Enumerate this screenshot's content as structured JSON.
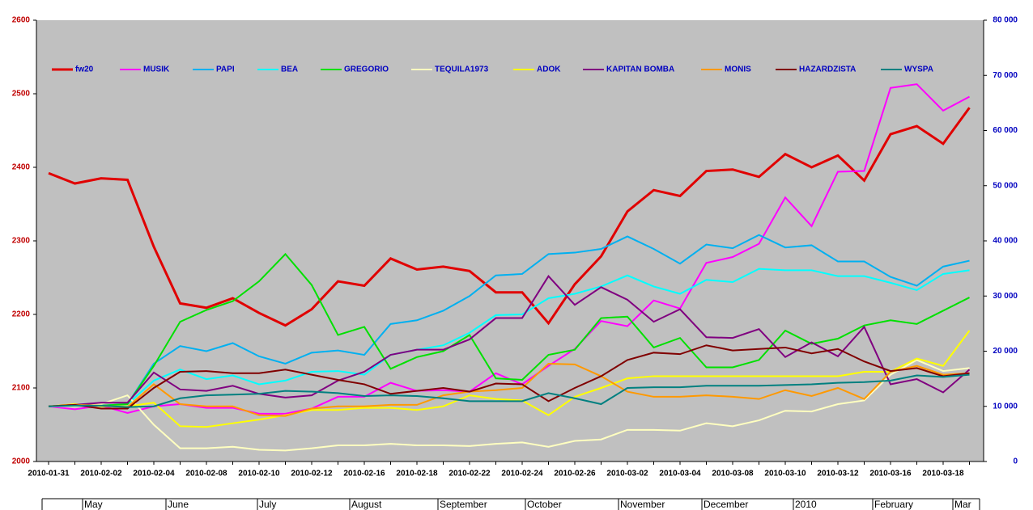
{
  "chart_data": {
    "type": "line",
    "categories": [
      "2010-01-31",
      null,
      "2010-02-02",
      null,
      "2010-02-04",
      null,
      "2010-02-08",
      null,
      "2010-02-10",
      null,
      "2010-02-12",
      null,
      "2010-02-16",
      null,
      "2010-02-18",
      null,
      "2010-02-22",
      null,
      "2010-02-24",
      null,
      "2010-02-26",
      null,
      "2010-03-02",
      null,
      "2010-03-04",
      null,
      "2010-03-08",
      null,
      "2010-03-10",
      null,
      "2010-03-12",
      null,
      "2010-03-16",
      null,
      "2010-03-18",
      null
    ],
    "x2categories": [
      "May",
      "June",
      "July",
      "August",
      "September",
      "October",
      "November",
      "December",
      "2010",
      "February",
      "Mar"
    ],
    "ylim": [
      2000,
      2600
    ],
    "yticks": [
      2000,
      2100,
      2200,
      2300,
      2400,
      2500,
      2600
    ],
    "y2lim": [
      0,
      80000
    ],
    "y2ticks": [
      0,
      {
        "value": 10000,
        "label": "10 000"
      },
      {
        "value": 20000,
        "label": "20 000"
      },
      {
        "value": 30000,
        "label": "30 000"
      },
      {
        "value": 40000,
        "label": "40 000"
      },
      {
        "value": 50000,
        "label": "50 000"
      },
      {
        "value": 60000,
        "label": "60 000"
      },
      {
        "value": 70000,
        "label": "70 000"
      },
      {
        "value": 80000,
        "label": "80 000"
      }
    ],
    "series": [
      {
        "name": "fw20",
        "color": "#e00000",
        "values": [
          2392,
          2378,
          2385,
          2383,
          2292,
          2215,
          2209,
          2222,
          2202,
          2185,
          2207,
          2245,
          2239,
          2276,
          2261,
          2265,
          2259,
          2230,
          2230,
          2188,
          2241,
          2279,
          2340,
          2369,
          2361,
          2395,
          2397,
          2387,
          2418,
          2400,
          2416,
          2382,
          2445,
          2456,
          2432,
          2481
        ]
      },
      {
        "name": "MUSIK",
        "color": "#ff00ff",
        "values": [
          2075,
          2071,
          2076,
          2066,
          2075,
          2078,
          2073,
          2073,
          2065,
          2065,
          2072,
          2088,
          2088,
          2107,
          2096,
          2097,
          2095,
          2120,
          2105,
          2130,
          2153,
          2191,
          2184,
          2219,
          2208,
          2270,
          2278,
          2296,
          2359,
          2320,
          2394,
          2395,
          2508,
          2513,
          2477,
          2496
        ]
      },
      {
        "name": "PAPI",
        "color": "#00b0f0",
        "values": [
          2075,
          2077,
          2076,
          2078,
          2133,
          2157,
          2150,
          2161,
          2143,
          2133,
          2148,
          2151,
          2145,
          2187,
          2192,
          2205,
          2225,
          2253,
          2255,
          2282,
          2284,
          2289,
          2306,
          2289,
          2269,
          2295,
          2290,
          2308,
          2291,
          2294,
          2272,
          2272,
          2251,
          2239,
          2265,
          2273
        ]
      },
      {
        "name": "BEA",
        "color": "#00ffff",
        "values": [
          2075,
          2077,
          2076,
          2078,
          2110,
          2125,
          2112,
          2117,
          2105,
          2110,
          2122,
          2123,
          2118,
          2145,
          2152,
          2158,
          2175,
          2199,
          2200,
          2222,
          2228,
          2238,
          2253,
          2238,
          2228,
          2247,
          2244,
          2262,
          2260,
          2260,
          2252,
          2252,
          2243,
          2233,
          2255,
          2260
        ]
      },
      {
        "name": "GREGORIO",
        "color": "#00e000",
        "values": [
          2075,
          2077,
          2076,
          2078,
          2130,
          2190,
          2206,
          2218,
          2245,
          2282,
          2240,
          2172,
          2183,
          2126,
          2142,
          2150,
          2172,
          2113,
          2111,
          2145,
          2152,
          2195,
          2197,
          2155,
          2168,
          2128,
          2128,
          2138,
          2178,
          2160,
          2167,
          2185,
          2192,
          2187,
          2205,
          2223
        ]
      },
      {
        "name": "TEQUILA1973",
        "color": "#ffffc0",
        "values": [
          2075,
          2075,
          2078,
          2090,
          2050,
          2018,
          2018,
          2020,
          2016,
          2015,
          2018,
          2022,
          2022,
          2024,
          2022,
          2022,
          2021,
          2024,
          2026,
          2020,
          2028,
          2030,
          2043,
          2043,
          2042,
          2052,
          2048,
          2056,
          2069,
          2068,
          2078,
          2083,
          2118,
          2138,
          2123,
          2127
        ]
      },
      {
        "name": "ADOK",
        "color": "#ffff00",
        "values": [
          2075,
          2078,
          2075,
          2075,
          2080,
          2048,
          2047,
          2052,
          2057,
          2063,
          2070,
          2070,
          2073,
          2073,
          2070,
          2075,
          2090,
          2085,
          2083,
          2063,
          2088,
          2100,
          2113,
          2116,
          2116,
          2116,
          2116,
          2116,
          2116,
          2116,
          2116,
          2122,
          2122,
          2140,
          2130,
          2178
        ]
      },
      {
        "name": "KAPITAN BOMBA",
        "color": "#800080",
        "values": [
          2075,
          2077,
          2080,
          2080,
          2121,
          2098,
          2096,
          2103,
          2092,
          2087,
          2090,
          2110,
          2122,
          2145,
          2152,
          2152,
          2166,
          2195,
          2195,
          2252,
          2213,
          2237,
          2220,
          2190,
          2207,
          2169,
          2168,
          2180,
          2142,
          2162,
          2143,
          2183,
          2105,
          2112,
          2094,
          2125
        ]
      },
      {
        "name": "MONIS",
        "color": "#ff9900",
        "values": [
          2075,
          2077,
          2076,
          2074,
          2105,
          2078,
          2075,
          2075,
          2063,
          2062,
          2072,
          2075,
          2075,
          2077,
          2077,
          2090,
          2095,
          2097,
          2100,
          2133,
          2132,
          2116,
          2095,
          2088,
          2088,
          2090,
          2088,
          2085,
          2097,
          2089,
          2100,
          2085,
          2122,
          2130,
          2118,
          2120
        ]
      },
      {
        "name": "HAZARDZISTA",
        "color": "#800000",
        "values": [
          2075,
          2077,
          2072,
          2072,
          2100,
          2122,
          2123,
          2120,
          2120,
          2125,
          2118,
          2111,
          2105,
          2092,
          2096,
          2100,
          2095,
          2106,
          2105,
          2082,
          2100,
          2116,
          2138,
          2148,
          2146,
          2158,
          2151,
          2153,
          2155,
          2147,
          2153,
          2136,
          2123,
          2127,
          2116,
          2120
        ]
      },
      {
        "name": "WYSPA",
        "color": "#008080",
        "values": [
          2075,
          2076,
          2076,
          2074,
          2075,
          2086,
          2090,
          2091,
          2092,
          2096,
          2095,
          2093,
          2089,
          2090,
          2089,
          2086,
          2082,
          2082,
          2082,
          2093,
          2086,
          2078,
          2100,
          2101,
          2101,
          2103,
          2103,
          2103,
          2104,
          2105,
          2107,
          2108,
          2110,
          2117,
          2115,
          2118
        ]
      }
    ]
  }
}
